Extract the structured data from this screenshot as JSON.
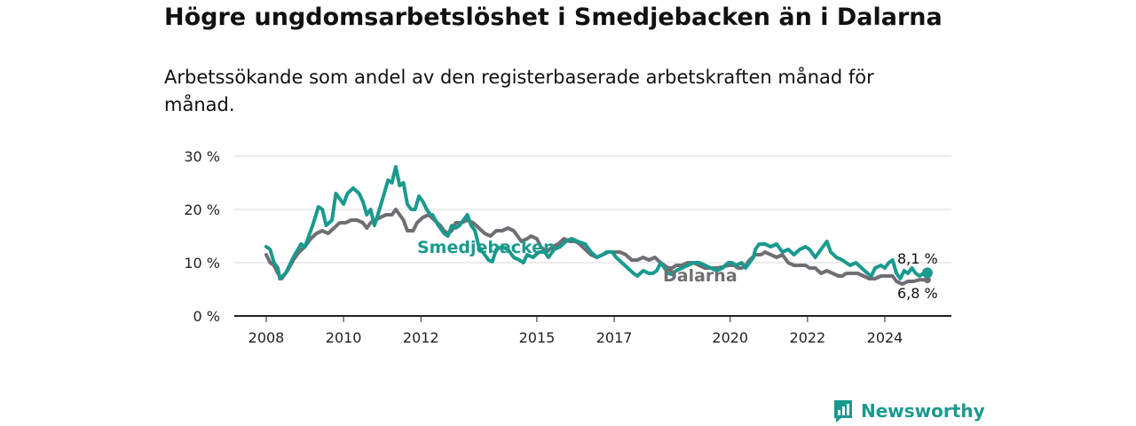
{
  "title": "Högre ungdomsarbetslöshet i Smedjebacken än i Dalarna",
  "subtitle": "Arbetssökande som andel av den registerbaserade arbetskraften månad för månad.",
  "logo": {
    "text": "Newsworthy",
    "icon": "newsworthy-logo-icon"
  },
  "colors": {
    "smedjebacken": "#1a9a8e",
    "dalarna": "#6f6e73",
    "grid": "#d9d9d9",
    "axis": "#222222"
  },
  "chart_data": {
    "type": "line",
    "title": "Högre ungdomsarbetslöshet i Smedjebacken än i Dalarna",
    "subtitle": "Arbetssökande som andel av den registerbaserade arbetskraften månad för månad.",
    "xlabel": "",
    "ylabel": "",
    "xlim": [
      2008,
      2025.2
    ],
    "ylim": [
      0,
      30
    ],
    "grid": true,
    "legend": "inline",
    "x_ticks": [
      {
        "value": 2008,
        "label": "2008"
      },
      {
        "value": 2010,
        "label": "2010"
      },
      {
        "value": 2012,
        "label": "2012"
      },
      {
        "value": 2015,
        "label": "2015"
      },
      {
        "value": 2017,
        "label": "2017"
      },
      {
        "value": 2020,
        "label": "2020"
      },
      {
        "value": 2022,
        "label": "2022"
      },
      {
        "value": 2024,
        "label": "2024"
      }
    ],
    "y_ticks": [
      {
        "value": 0,
        "label": "0 %"
      },
      {
        "value": 10,
        "label": "10 %"
      },
      {
        "value": 20,
        "label": "20 %"
      },
      {
        "value": 30,
        "label": "30 %"
      }
    ],
    "series": [
      {
        "name": "Smedjebacken",
        "color": "#1a9a8e",
        "end_label": "8,1 %",
        "points": [
          [
            2008.0,
            13
          ],
          [
            2008.1,
            12.5
          ],
          [
            2008.2,
            10
          ],
          [
            2008.3,
            9
          ],
          [
            2008.35,
            7
          ],
          [
            2008.5,
            8
          ],
          [
            2008.7,
            11
          ],
          [
            2008.9,
            13.5
          ],
          [
            2009.0,
            13
          ],
          [
            2009.1,
            15
          ],
          [
            2009.2,
            17
          ],
          [
            2009.35,
            20.5
          ],
          [
            2009.45,
            20
          ],
          [
            2009.55,
            17
          ],
          [
            2009.7,
            18
          ],
          [
            2009.8,
            23
          ],
          [
            2009.9,
            22
          ],
          [
            2010.0,
            21
          ],
          [
            2010.1,
            23
          ],
          [
            2010.25,
            24
          ],
          [
            2010.4,
            23
          ],
          [
            2010.5,
            21.5
          ],
          [
            2010.6,
            19
          ],
          [
            2010.7,
            20
          ],
          [
            2010.8,
            17
          ],
          [
            2010.95,
            20.5
          ],
          [
            2011.05,
            23
          ],
          [
            2011.15,
            25.5
          ],
          [
            2011.25,
            25
          ],
          [
            2011.35,
            28
          ],
          [
            2011.45,
            24.5
          ],
          [
            2011.55,
            25
          ],
          [
            2011.65,
            21
          ],
          [
            2011.75,
            20
          ],
          [
            2011.85,
            20
          ],
          [
            2011.95,
            22.5
          ],
          [
            2012.05,
            21.5
          ],
          [
            2012.15,
            20
          ],
          [
            2012.25,
            19
          ],
          [
            2012.3,
            19
          ],
          [
            2012.45,
            17
          ],
          [
            2012.6,
            15.5
          ],
          [
            2012.7,
            15
          ],
          [
            2012.8,
            17
          ],
          [
            2012.9,
            16.5
          ],
          [
            2013.0,
            17
          ],
          [
            2013.1,
            18
          ],
          [
            2013.2,
            19
          ],
          [
            2013.3,
            17
          ],
          [
            2013.4,
            16
          ],
          [
            2013.5,
            13
          ],
          [
            2013.6,
            12
          ],
          [
            2013.75,
            10.5
          ],
          [
            2013.85,
            10.2
          ],
          [
            2013.95,
            12.5
          ],
          [
            2014.1,
            13
          ],
          [
            2014.25,
            12.5
          ],
          [
            2014.4,
            11
          ],
          [
            2014.55,
            10.5
          ],
          [
            2014.65,
            10
          ],
          [
            2014.75,
            11.5
          ],
          [
            2014.9,
            11
          ],
          [
            2015.05,
            12
          ],
          [
            2015.2,
            12
          ],
          [
            2015.3,
            11
          ],
          [
            2015.45,
            12.5
          ],
          [
            2015.6,
            13
          ],
          [
            2015.75,
            14
          ],
          [
            2015.9,
            14.5
          ],
          [
            2016.05,
            14
          ],
          [
            2016.25,
            13.5
          ],
          [
            2016.4,
            12
          ],
          [
            2016.55,
            11
          ],
          [
            2016.7,
            11.5
          ],
          [
            2016.8,
            12
          ],
          [
            2016.95,
            12
          ],
          [
            2017.05,
            11
          ],
          [
            2017.2,
            10
          ],
          [
            2017.35,
            9
          ],
          [
            2017.5,
            8
          ],
          [
            2017.6,
            7.5
          ],
          [
            2017.75,
            8.5
          ],
          [
            2017.9,
            8
          ],
          [
            2018.0,
            8
          ],
          [
            2018.1,
            8.5
          ],
          [
            2018.2,
            10
          ],
          [
            2018.3,
            9
          ],
          [
            2018.4,
            8
          ],
          [
            2018.5,
            7.8
          ],
          [
            2018.6,
            8.5
          ],
          [
            2018.75,
            9
          ],
          [
            2018.9,
            9.5
          ],
          [
            2019.05,
            10
          ],
          [
            2019.2,
            10
          ],
          [
            2019.35,
            9.5
          ],
          [
            2019.5,
            9
          ],
          [
            2019.65,
            8.5
          ],
          [
            2019.8,
            9
          ],
          [
            2019.95,
            10
          ],
          [
            2020.05,
            10
          ],
          [
            2020.15,
            9.5
          ],
          [
            2020.3,
            10
          ],
          [
            2020.4,
            9
          ],
          [
            2020.5,
            10
          ],
          [
            2020.6,
            11
          ],
          [
            2020.65,
            12.5
          ],
          [
            2020.75,
            13.5
          ],
          [
            2020.9,
            13.5
          ],
          [
            2021.05,
            13
          ],
          [
            2021.2,
            13.5
          ],
          [
            2021.35,
            12
          ],
          [
            2021.5,
            12.5
          ],
          [
            2021.65,
            11.5
          ],
          [
            2021.8,
            12.5
          ],
          [
            2021.95,
            13
          ],
          [
            2022.05,
            12.5
          ],
          [
            2022.2,
            11
          ],
          [
            2022.35,
            12.5
          ],
          [
            2022.5,
            14
          ],
          [
            2022.6,
            12
          ],
          [
            2022.75,
            11
          ],
          [
            2022.9,
            10.5
          ],
          [
            2023.0,
            10
          ],
          [
            2023.1,
            9.5
          ],
          [
            2023.25,
            10
          ],
          [
            2023.4,
            9
          ],
          [
            2023.55,
            8
          ],
          [
            2023.65,
            7.5
          ],
          [
            2023.75,
            9
          ],
          [
            2023.9,
            9.5
          ],
          [
            2024.0,
            9
          ],
          [
            2024.1,
            10
          ],
          [
            2024.2,
            10.5
          ],
          [
            2024.3,
            8
          ],
          [
            2024.4,
            7
          ],
          [
            2024.5,
            8.5
          ],
          [
            2024.6,
            8
          ],
          [
            2024.7,
            9
          ],
          [
            2024.8,
            8
          ],
          [
            2024.9,
            7.5
          ],
          [
            2025.0,
            8
          ],
          [
            2025.1,
            8.1
          ]
        ]
      },
      {
        "name": "Dalarna",
        "color": "#6f6e73",
        "end_label": "6,8 %",
        "points": [
          [
            2008.0,
            11.5
          ],
          [
            2008.1,
            10
          ],
          [
            2008.2,
            9.5
          ],
          [
            2008.3,
            8
          ],
          [
            2008.4,
            7
          ],
          [
            2008.55,
            8.5
          ],
          [
            2008.7,
            10.5
          ],
          [
            2008.85,
            12
          ],
          [
            2009.0,
            13
          ],
          [
            2009.15,
            14.5
          ],
          [
            2009.3,
            15.5
          ],
          [
            2009.45,
            16
          ],
          [
            2009.6,
            15.5
          ],
          [
            2009.75,
            16.5
          ],
          [
            2009.9,
            17.5
          ],
          [
            2010.05,
            17.5
          ],
          [
            2010.2,
            18
          ],
          [
            2010.35,
            18
          ],
          [
            2010.5,
            17.5
          ],
          [
            2010.6,
            16.5
          ],
          [
            2010.7,
            17.5
          ],
          [
            2010.8,
            18
          ],
          [
            2010.95,
            18.5
          ],
          [
            2011.1,
            19
          ],
          [
            2011.25,
            19
          ],
          [
            2011.35,
            20
          ],
          [
            2011.45,
            19
          ],
          [
            2011.55,
            18
          ],
          [
            2011.65,
            16
          ],
          [
            2011.8,
            16
          ],
          [
            2011.9,
            17.5
          ],
          [
            2012.05,
            18.5
          ],
          [
            2012.2,
            19
          ],
          [
            2012.35,
            18
          ],
          [
            2012.5,
            17
          ],
          [
            2012.6,
            16
          ],
          [
            2012.7,
            15.5
          ],
          [
            2012.8,
            16
          ],
          [
            2012.9,
            17.5
          ],
          [
            2013.05,
            17.5
          ],
          [
            2013.2,
            18
          ],
          [
            2013.35,
            17.5
          ],
          [
            2013.5,
            16.5
          ],
          [
            2013.65,
            15.5
          ],
          [
            2013.8,
            15
          ],
          [
            2013.95,
            16
          ],
          [
            2014.1,
            16
          ],
          [
            2014.25,
            16.5
          ],
          [
            2014.4,
            16
          ],
          [
            2014.5,
            15
          ],
          [
            2014.6,
            14
          ],
          [
            2014.75,
            14.5
          ],
          [
            2014.85,
            15
          ],
          [
            2015.0,
            14.5
          ],
          [
            2015.1,
            13
          ],
          [
            2015.25,
            12
          ],
          [
            2015.4,
            13
          ],
          [
            2015.55,
            13.5
          ],
          [
            2015.7,
            14.5
          ],
          [
            2015.85,
            14
          ],
          [
            2016.0,
            14
          ],
          [
            2016.1,
            13.5
          ],
          [
            2016.25,
            12.5
          ],
          [
            2016.4,
            11.5
          ],
          [
            2016.55,
            11
          ],
          [
            2016.7,
            11.5
          ],
          [
            2016.85,
            12
          ],
          [
            2017.0,
            12
          ],
          [
            2017.15,
            12
          ],
          [
            2017.3,
            11.5
          ],
          [
            2017.45,
            10.5
          ],
          [
            2017.6,
            10.5
          ],
          [
            2017.75,
            11
          ],
          [
            2017.9,
            10.5
          ],
          [
            2018.05,
            11
          ],
          [
            2018.2,
            10
          ],
          [
            2018.3,
            9.5
          ],
          [
            2018.4,
            9
          ],
          [
            2018.5,
            9
          ],
          [
            2018.6,
            9.5
          ],
          [
            2018.75,
            9.5
          ],
          [
            2018.9,
            10
          ],
          [
            2019.05,
            10
          ],
          [
            2019.2,
            9.5
          ],
          [
            2019.35,
            9
          ],
          [
            2019.5,
            9
          ],
          [
            2019.65,
            9
          ],
          [
            2019.8,
            9.2
          ],
          [
            2019.95,
            9.5
          ],
          [
            2020.1,
            9.5
          ],
          [
            2020.2,
            9
          ],
          [
            2020.3,
            9
          ],
          [
            2020.4,
            9.5
          ],
          [
            2020.5,
            10.5
          ],
          [
            2020.65,
            11.5
          ],
          [
            2020.8,
            11.5
          ],
          [
            2020.9,
            12
          ],
          [
            2021.05,
            11.5
          ],
          [
            2021.2,
            11
          ],
          [
            2021.35,
            11.5
          ],
          [
            2021.5,
            10
          ],
          [
            2021.65,
            9.5
          ],
          [
            2021.8,
            9.5
          ],
          [
            2021.95,
            9.5
          ],
          [
            2022.05,
            9
          ],
          [
            2022.2,
            9
          ],
          [
            2022.35,
            8
          ],
          [
            2022.5,
            8.5
          ],
          [
            2022.65,
            8
          ],
          [
            2022.8,
            7.5
          ],
          [
            2022.9,
            7.5
          ],
          [
            2023.0,
            8
          ],
          [
            2023.15,
            8
          ],
          [
            2023.3,
            8
          ],
          [
            2023.45,
            7.5
          ],
          [
            2023.6,
            7
          ],
          [
            2023.75,
            7
          ],
          [
            2023.9,
            7.5
          ],
          [
            2024.05,
            7.5
          ],
          [
            2024.2,
            7.5
          ],
          [
            2024.3,
            6.5
          ],
          [
            2024.45,
            6
          ],
          [
            2024.6,
            6.5
          ],
          [
            2024.75,
            6.5
          ],
          [
            2024.9,
            6.8
          ],
          [
            2025.0,
            6.8
          ],
          [
            2025.1,
            6.8
          ]
        ]
      }
    ]
  }
}
